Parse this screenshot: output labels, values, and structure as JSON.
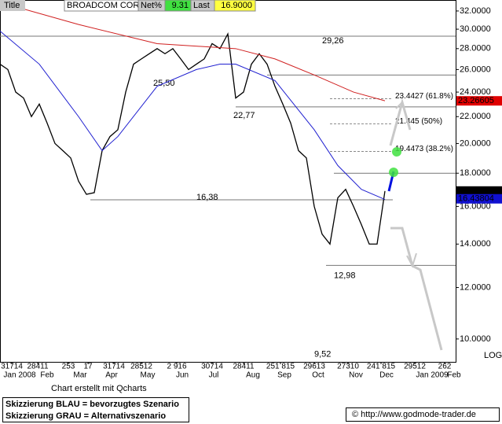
{
  "header": {
    "title": "Title",
    "name": "BROADCOM CORP",
    "net_label": "Net%",
    "net": "9.31",
    "last_label": "Last",
    "last": "16.9000"
  },
  "chart_data": {
    "type": "line",
    "log_scale": true,
    "xlim": [
      0,
      58
    ],
    "ylim": [
      9.22,
      33.27
    ],
    "yticks": [
      {
        "value": 10,
        "label": "10.0000"
      },
      {
        "value": 12,
        "label": "12.0000"
      },
      {
        "value": 14,
        "label": "14.0000"
      },
      {
        "value": 16,
        "label": "16.0000"
      },
      {
        "value": 18,
        "label": "18.0000"
      },
      {
        "value": 20,
        "label": "20.0000"
      },
      {
        "value": 22,
        "label": "22.0000"
      },
      {
        "value": 24,
        "label": "24.0000"
      },
      {
        "value": 26,
        "label": "26.0000"
      },
      {
        "value": 28,
        "label": "28.0000"
      },
      {
        "value": 30,
        "label": "30.0000"
      },
      {
        "value": 32,
        "label": "32.0000"
      }
    ],
    "day_ticks": [
      {
        "value": 1.5,
        "label": "31714"
      },
      {
        "value": 4.8,
        "label": "28411"
      },
      {
        "value": 8.7,
        "label": "253"
      },
      {
        "value": 11.2,
        "label": "17"
      },
      {
        "value": 14.5,
        "label": "31714"
      },
      {
        "value": 18,
        "label": "28512"
      },
      {
        "value": 22.5,
        "label": "2 916"
      },
      {
        "value": 27,
        "label": "30714"
      },
      {
        "value": 31,
        "label": "28411"
      },
      {
        "value": 35.7,
        "label": "251 815"
      },
      {
        "value": 40,
        "label": "29613"
      },
      {
        "value": 44.3,
        "label": "27310"
      },
      {
        "value": 48.5,
        "label": "241 815"
      },
      {
        "value": 52.8,
        "label": "29512"
      },
      {
        "value": 56.6,
        "label": "262"
      }
    ],
    "month_ticks": [
      {
        "value": 2.5,
        "label": "Jan 2008"
      },
      {
        "value": 6,
        "label": "Feb"
      },
      {
        "value": 10.2,
        "label": "Mar"
      },
      {
        "value": 14.2,
        "label": "Apr"
      },
      {
        "value": 18.8,
        "label": "May"
      },
      {
        "value": 23.2,
        "label": "Jun"
      },
      {
        "value": 27.2,
        "label": "Jul"
      },
      {
        "value": 32.2,
        "label": "Aug"
      },
      {
        "value": 36.2,
        "label": "Sep"
      },
      {
        "value": 40.5,
        "label": "Oct"
      },
      {
        "value": 45.3,
        "label": "Nov"
      },
      {
        "value": 49.2,
        "label": "Dec"
      },
      {
        "value": 55,
        "label": "Jan 2009"
      },
      {
        "value": 57.8,
        "label": "Feb"
      }
    ],
    "series": [
      {
        "color": "#000000",
        "x": [
          0,
          1,
          2,
          3,
          4,
          5,
          6,
          7,
          8,
          9,
          10,
          11,
          12,
          13,
          14,
          15,
          16,
          17,
          18,
          19,
          20,
          21,
          22,
          23,
          24,
          25,
          26,
          27,
          28,
          29,
          30,
          31,
          32,
          33,
          34,
          35,
          36,
          37,
          38,
          39,
          40,
          41,
          42,
          43,
          44,
          45,
          46,
          47,
          48,
          49
        ],
        "values": [
          26.5,
          26,
          24,
          23.5,
          22,
          23,
          21.5,
          20,
          19.5,
          19,
          17.5,
          16.7,
          16.8,
          19.5,
          20.5,
          21,
          24,
          26.5,
          27,
          27.5,
          28,
          27.5,
          28,
          27,
          26,
          26.5,
          27,
          28.5,
          28,
          29.5,
          23.5,
          24,
          26.5,
          27.5,
          26.5,
          24.5,
          23,
          21.5,
          19.5,
          19,
          16,
          14.5,
          14,
          16.5,
          17,
          16,
          15,
          14,
          14,
          16.9
        ]
      },
      {
        "color": "#2020d0",
        "x": [
          0,
          5,
          10,
          13,
          15,
          20,
          25,
          28,
          30,
          35,
          40,
          43,
          46,
          49
        ],
        "values": [
          29.8,
          26.5,
          22,
          19.5,
          20.5,
          24.5,
          26,
          26.5,
          26.5,
          25,
          21,
          18.5,
          17,
          16.4
        ]
      },
      {
        "color": "#d02020",
        "x": [
          0,
          10,
          20,
          30,
          35,
          40,
          45,
          49
        ],
        "values": [
          33,
          30.5,
          28.5,
          28,
          27,
          25.5,
          24,
          23.27
        ]
      }
    ],
    "levels": [
      {
        "value": 29.26,
        "label": "29,26"
      },
      {
        "value": 25.5,
        "label": "25,50"
      },
      {
        "value": 22.77,
        "label": "22,77"
      },
      {
        "value": 18
      },
      {
        "value": 16.38,
        "label": "16,38"
      },
      {
        "value": 12.98,
        "label": "12,98"
      },
      {
        "value": 9.52,
        "label": "9,52"
      }
    ],
    "fib_levels": [
      {
        "value": 23.4427,
        "label": "23.4427 (61.8%)"
      },
      {
        "value": 21.445,
        "label": "21.445 (50%)"
      },
      {
        "value": 19.4473,
        "label": "19.4473 (38.2%)"
      }
    ],
    "price_tags": [
      {
        "value": 23.26605,
        "label": "23.26605",
        "color": "#e00000"
      },
      {
        "value": 16.9,
        "label": "16.9000",
        "color": "#000000"
      },
      {
        "value": 16.43804,
        "label": "16.43804",
        "color": "#1010d0"
      }
    ],
    "scale_label": "LOG"
  },
  "footer": {
    "credit": "Chart erstellt mit Qcharts",
    "legend": [
      "Skizzierung BLAU = bevorzugtes Szenario",
      "Skizzierung GRAU = Alternativszenario"
    ],
    "url": "© http://www.godmode-trader.de"
  }
}
